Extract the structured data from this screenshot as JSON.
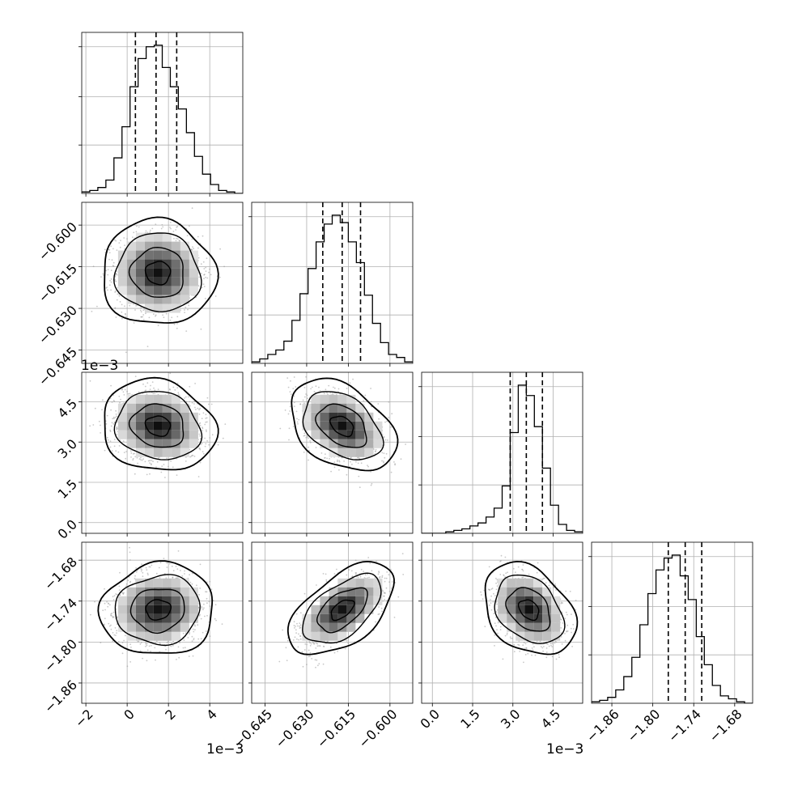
{
  "colors": {
    "background": "#ffffff",
    "axis": "#000000",
    "grid": "#b0b0b0",
    "scatter_points": "#9a9a9a",
    "density_dark": "#000000",
    "density_light": "#ffffff"
  },
  "chart_data": {
    "type": "corner",
    "grid": true,
    "quantile_lines": "dashed",
    "parameters": [
      {
        "index": 0,
        "center": 0.0015,
        "sigma": 0.001,
        "range": [
          -0.0022,
          0.0056
        ],
        "ticks": [
          -0.002,
          0.0,
          0.002,
          0.004
        ],
        "tick_labels": [
          "−2",
          "0",
          "2",
          "4"
        ],
        "offset_label": "1e−3",
        "quantiles": [
          0.0004,
          0.0014,
          0.0024
        ]
      },
      {
        "index": 1,
        "center": -0.6172,
        "sigma": 0.0069,
        "range": [
          -0.6498,
          -0.5918
        ],
        "ticks": [
          -0.645,
          -0.63,
          -0.615,
          -0.6
        ],
        "tick_labels": [
          "−0.645",
          "−0.630",
          "−0.615",
          "−0.600"
        ],
        "offset_label": "",
        "quantiles": [
          -0.6242,
          -0.6172,
          -0.6106
        ]
      },
      {
        "index": 2,
        "center": 0.0036,
        "sigma": 0.00062,
        "range": [
          -0.0004,
          0.0056
        ],
        "ticks": [
          0.0,
          0.0015,
          0.003,
          0.0045
        ],
        "tick_labels": [
          "0.0",
          "1.5",
          "3.0",
          "4.5"
        ],
        "offset_label": "1e−3",
        "quantiles": [
          0.0029,
          0.0035,
          0.0041
        ]
      },
      {
        "index": 3,
        "center": -1.7525,
        "sigma": 0.0245,
        "range": [
          -1.8897,
          -1.6537
        ],
        "ticks": [
          -1.86,
          -1.8,
          -1.74,
          -1.68
        ],
        "tick_labels": [
          "−1.86",
          "−1.80",
          "−1.74",
          "−1.68"
        ],
        "offset_label": "",
        "quantiles": [
          -1.7773,
          -1.7525,
          -1.7283
        ]
      }
    ],
    "histograms": [
      {
        "param": 0,
        "bins": 20,
        "values": [
          1,
          2,
          4,
          9,
          24,
          45,
          72,
          91,
          99,
          100,
          85,
          72,
          57,
          41,
          25,
          13,
          6,
          2,
          1,
          0
        ]
      },
      {
        "param": 1,
        "bins": 20,
        "values": [
          1,
          3,
          6,
          9,
          15,
          29,
          47,
          64,
          82,
          94,
          100,
          95,
          82,
          68,
          46,
          27,
          14,
          6,
          4,
          1
        ]
      },
      {
        "param": 2,
        "bins": 20,
        "values": [
          0,
          0,
          0,
          1,
          2,
          3,
          5,
          7,
          11,
          17,
          32,
          68,
          100,
          93,
          72,
          44,
          19,
          6,
          2,
          1
        ]
      },
      {
        "param": 3,
        "bins": 20,
        "values": [
          1,
          2,
          4,
          9,
          18,
          31,
          53,
          74,
          90,
          98,
          100,
          86,
          70,
          45,
          26,
          12,
          5,
          3,
          1,
          0
        ]
      }
    ],
    "pairs": [
      {
        "x": 0,
        "y": 1,
        "correlation": -0.03
      },
      {
        "x": 0,
        "y": 2,
        "correlation": -0.12
      },
      {
        "x": 1,
        "y": 2,
        "correlation": -0.38
      },
      {
        "x": 0,
        "y": 3,
        "correlation": 0.05
      },
      {
        "x": 1,
        "y": 3,
        "correlation": 0.55
      },
      {
        "x": 2,
        "y": 3,
        "correlation": -0.32
      }
    ]
  }
}
